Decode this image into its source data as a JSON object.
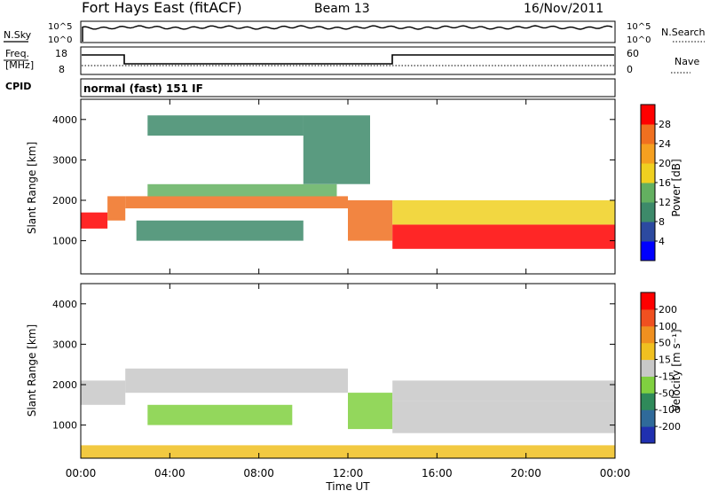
{
  "header": {
    "title": "Fort Hays East (fitACF)",
    "beam": "Beam 13",
    "date": "16/Nov/2011"
  },
  "noise_panel": {
    "left_label": "N.Sky",
    "left_ticks": [
      "10^5",
      "10^0"
    ],
    "right_ticks": [
      "10^5",
      "10^0"
    ],
    "right_label": "N.Search"
  },
  "freq_panel": {
    "left_label_1": "Freq.",
    "left_label_2": "[MHz]",
    "left_ticks": [
      "18",
      "8"
    ],
    "right_ticks": [
      "60",
      "0"
    ],
    "right_label": "Nave"
  },
  "cpid_panel": {
    "label": "CPID",
    "mode": "normal (fast) 151 IF"
  },
  "chart_data": [
    {
      "type": "heatmap",
      "name": "power",
      "ylabel": "Slant Range [km]",
      "yticks": [
        "1000",
        "2000",
        "3000",
        "4000"
      ],
      "ylim": [
        180,
        4500
      ],
      "colorbar_label": "Power [dB]",
      "colorbar_ticks": [
        "4",
        "8",
        "12",
        "16",
        "20",
        "24",
        "28"
      ],
      "colorbar_colors": [
        "#0000ff",
        "#2c4aa0",
        "#3d8a6a",
        "#63b060",
        "#f0d020",
        "#f5a020",
        "#f07020",
        "#ff0000"
      ],
      "bands": [
        {
          "t0": 0.0,
          "t1": 1.2,
          "r0": 1300,
          "r1": 1700,
          "level": 7
        },
        {
          "t0": 1.2,
          "t1": 2.0,
          "r0": 1500,
          "r1": 2100,
          "level": 6
        },
        {
          "t0": 2.0,
          "t1": 12.0,
          "r0": 1800,
          "r1": 2100,
          "level": 6
        },
        {
          "t0": 3.0,
          "t1": 11.5,
          "r0": 2100,
          "r1": 2400,
          "level": 3
        },
        {
          "t0": 2.5,
          "t1": 10.0,
          "r0": 1000,
          "r1": 1500,
          "level": 2
        },
        {
          "t0": 12.0,
          "t1": 14.0,
          "r0": 1000,
          "r1": 2000,
          "level": 6
        },
        {
          "t0": 14.0,
          "t1": 24.0,
          "r0": 800,
          "r1": 1400,
          "level": 7
        },
        {
          "t0": 14.0,
          "t1": 24.0,
          "r0": 1400,
          "r1": 2000,
          "level": 4
        },
        {
          "t0": 3.0,
          "t1": 10.0,
          "r0": 3600,
          "r1": 4100,
          "level": 2
        },
        {
          "t0": 10.0,
          "t1": 13.0,
          "r0": 2400,
          "r1": 4100,
          "level": 2
        }
      ]
    },
    {
      "type": "heatmap",
      "name": "velocity",
      "ylabel": "Slant Range [km]",
      "yticks": [
        "1000",
        "2000",
        "3000",
        "4000"
      ],
      "ylim": [
        180,
        4500
      ],
      "xlabel": "Time UT",
      "xticks": [
        "00:00",
        "04:00",
        "08:00",
        "12:00",
        "16:00",
        "20:00",
        "00:00"
      ],
      "xlim": [
        0,
        24
      ],
      "colorbar_label": "Velocity [m s⁻¹]",
      "colorbar_ticks": [
        "200",
        "100",
        "50",
        "15",
        "-15",
        "-50",
        "-100",
        "-200"
      ],
      "colorbar_colors": [
        "#2030b0",
        "#2f6a9a",
        "#2f8a5a",
        "#80d040",
        "#c8c8c8",
        "#f0c020",
        "#f09020",
        "#f05020",
        "#ff0000"
      ],
      "bands": [
        {
          "t0": 0.0,
          "t1": 2.0,
          "r0": 1500,
          "r1": 2100,
          "level": 4
        },
        {
          "t0": 2.0,
          "t1": 12.0,
          "r0": 1800,
          "r1": 2400,
          "level": 4
        },
        {
          "t0": 3.0,
          "t1": 9.5,
          "r0": 1000,
          "r1": 1500,
          "level": 3
        },
        {
          "t0": 12.0,
          "t1": 14.0,
          "r0": 900,
          "r1": 1800,
          "level": 3
        },
        {
          "t0": 14.0,
          "t1": 24.0,
          "r0": 800,
          "r1": 1600,
          "level": 4
        },
        {
          "t0": 14.0,
          "t1": 24.0,
          "r0": 1600,
          "r1": 2100,
          "level": 4
        },
        {
          "t0": 0.0,
          "t1": 24.0,
          "r0": 180,
          "r1": 500,
          "level": 5
        }
      ]
    }
  ]
}
